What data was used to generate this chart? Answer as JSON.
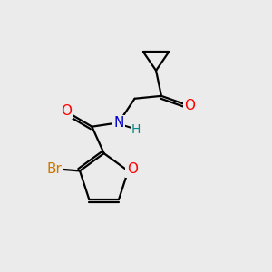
{
  "background_color": "#ebebeb",
  "bond_color": "#000000",
  "atom_colors": {
    "O": "#ff0000",
    "N": "#0000cc",
    "Br": "#cc7700",
    "H": "#008888",
    "C": "#000000"
  },
  "font_size": 10,
  "figsize": [
    3.0,
    3.0
  ],
  "dpi": 100,
  "lw": 1.6
}
